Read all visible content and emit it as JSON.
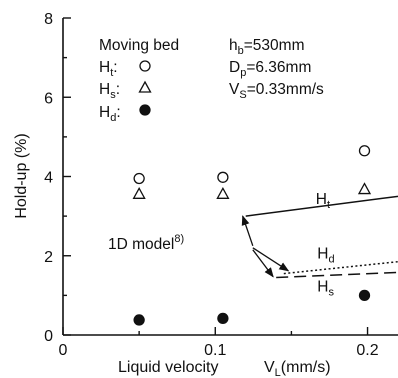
{
  "chart_data": {
    "type": "scatter",
    "xlabel": "Liquid velocity",
    "xlabel_symbol": "V",
    "xlabel_symbol_sub": "L",
    "xlabel_unit": "(mm/s)",
    "ylabel": "Hold-up  (%)",
    "xlim": [
      0,
      0.22
    ],
    "ylim": [
      0,
      8
    ],
    "x_ticks": [
      0,
      0.1,
      0.2
    ],
    "x_tick_labels": [
      "0",
      "0.1",
      "0.2"
    ],
    "y_ticks": [
      0,
      2,
      4,
      6,
      8
    ],
    "y_tick_labels": [
      "0",
      "2",
      "4",
      "6",
      "8"
    ],
    "legend": {
      "title": "Moving bed",
      "entries": [
        {
          "symbol": "H",
          "sub": "t",
          "marker": "circle-open"
        },
        {
          "symbol": "H",
          "sub": "s",
          "marker": "triangle-open"
        },
        {
          "symbol": "H",
          "sub": "d",
          "marker": "circle-filled"
        }
      ]
    },
    "conditions": [
      {
        "symbol": "h",
        "sub": "b",
        "text": "=530mm"
      },
      {
        "symbol": "D",
        "sub": "p",
        "text": "=6.36mm"
      },
      {
        "symbol": "V",
        "sub": "S",
        "text": "=0.33mm/s"
      }
    ],
    "series": [
      {
        "name": "Ht",
        "marker": "circle-open",
        "points": [
          [
            0.05,
            3.95
          ],
          [
            0.105,
            3.98
          ],
          [
            0.198,
            4.65
          ]
        ]
      },
      {
        "name": "Hs",
        "marker": "triangle-open",
        "points": [
          [
            0.05,
            3.55
          ],
          [
            0.105,
            3.55
          ],
          [
            0.198,
            3.67
          ]
        ]
      },
      {
        "name": "Hd",
        "marker": "circle-filled",
        "points": [
          [
            0.05,
            0.38
          ],
          [
            0.105,
            0.42
          ],
          [
            0.198,
            1.0
          ]
        ]
      }
    ],
    "model_lines": [
      {
        "name": "Ht",
        "style": "solid",
        "points": [
          [
            0.12,
            3.0
          ],
          [
            0.22,
            3.5
          ]
        ]
      },
      {
        "name": "Hd",
        "style": "dotted",
        "points": [
          [
            0.145,
            1.55
          ],
          [
            0.22,
            1.85
          ]
        ]
      },
      {
        "name": "Hs",
        "style": "dashed",
        "points": [
          [
            0.14,
            1.45
          ],
          [
            0.22,
            1.58
          ]
        ]
      }
    ],
    "line_labels": [
      {
        "symbol": "H",
        "sub": "t",
        "x": 0.166,
        "y": 3.3
      },
      {
        "symbol": "H",
        "sub": "d",
        "x": 0.167,
        "y": 1.93
      },
      {
        "symbol": "H",
        "sub": "s",
        "x": 0.167,
        "y": 1.1
      }
    ],
    "annotation": {
      "text": "1D model",
      "superscript": "8)",
      "anchor": [
        0.08,
        2.15
      ],
      "arrows_to": [
        [
          0.118,
          3.0
        ],
        [
          0.148,
          1.62
        ],
        [
          0.138,
          1.47
        ]
      ]
    }
  }
}
